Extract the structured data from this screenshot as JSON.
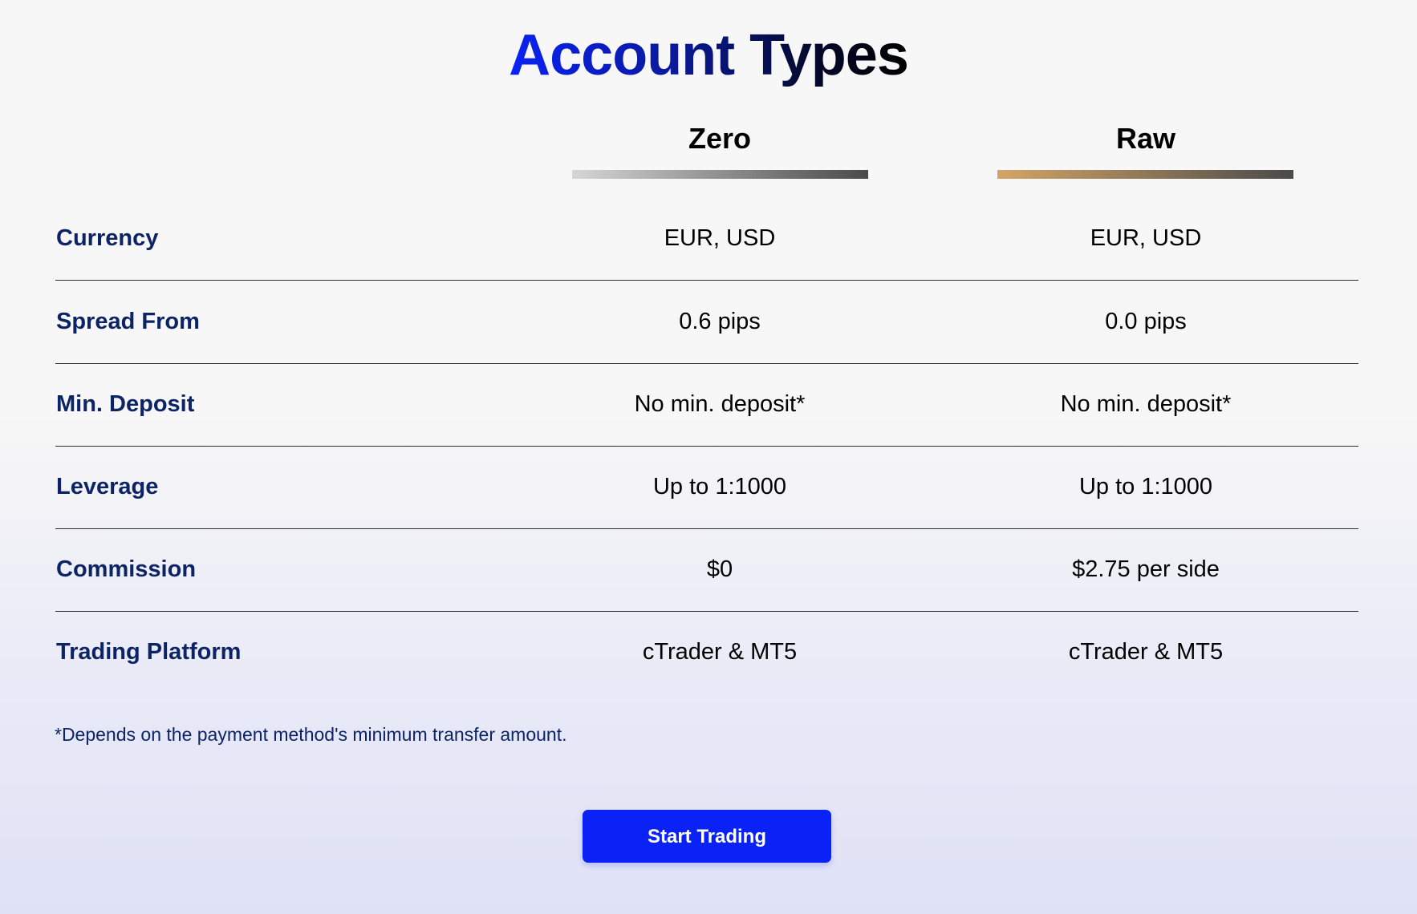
{
  "title": "Account Types",
  "columns": [
    {
      "name": "Zero",
      "bar_gradient": [
        "#d6d6d6",
        "#4a4a4a"
      ]
    },
    {
      "name": "Raw",
      "bar_gradient": [
        "#d4a566",
        "#4a4a4a"
      ]
    }
  ],
  "rows": [
    {
      "label": "Currency",
      "zero": "EUR, USD",
      "raw": "EUR, USD"
    },
    {
      "label": "Spread From",
      "zero": "0.6 pips",
      "raw": "0.0 pips"
    },
    {
      "label": "Min. Deposit",
      "zero": "No min. deposit*",
      "raw": "No min. deposit*"
    },
    {
      "label": "Leverage",
      "zero": "Up to 1:1000",
      "raw": "Up to 1:1000"
    },
    {
      "label": "Commission",
      "zero": "$0",
      "raw": "$2.75 per side"
    },
    {
      "label": "Trading Platform",
      "zero": "cTrader & MT5",
      "raw": "cTrader & MT5"
    }
  ],
  "footnote": "*Depends on the payment method's minimum transfer amount.",
  "cta": {
    "label": "Start Trading",
    "color": "#0a22f5"
  },
  "colors": {
    "label_text": "#0c2466",
    "title_start": "#0a22f5",
    "title_end": "#000000"
  }
}
